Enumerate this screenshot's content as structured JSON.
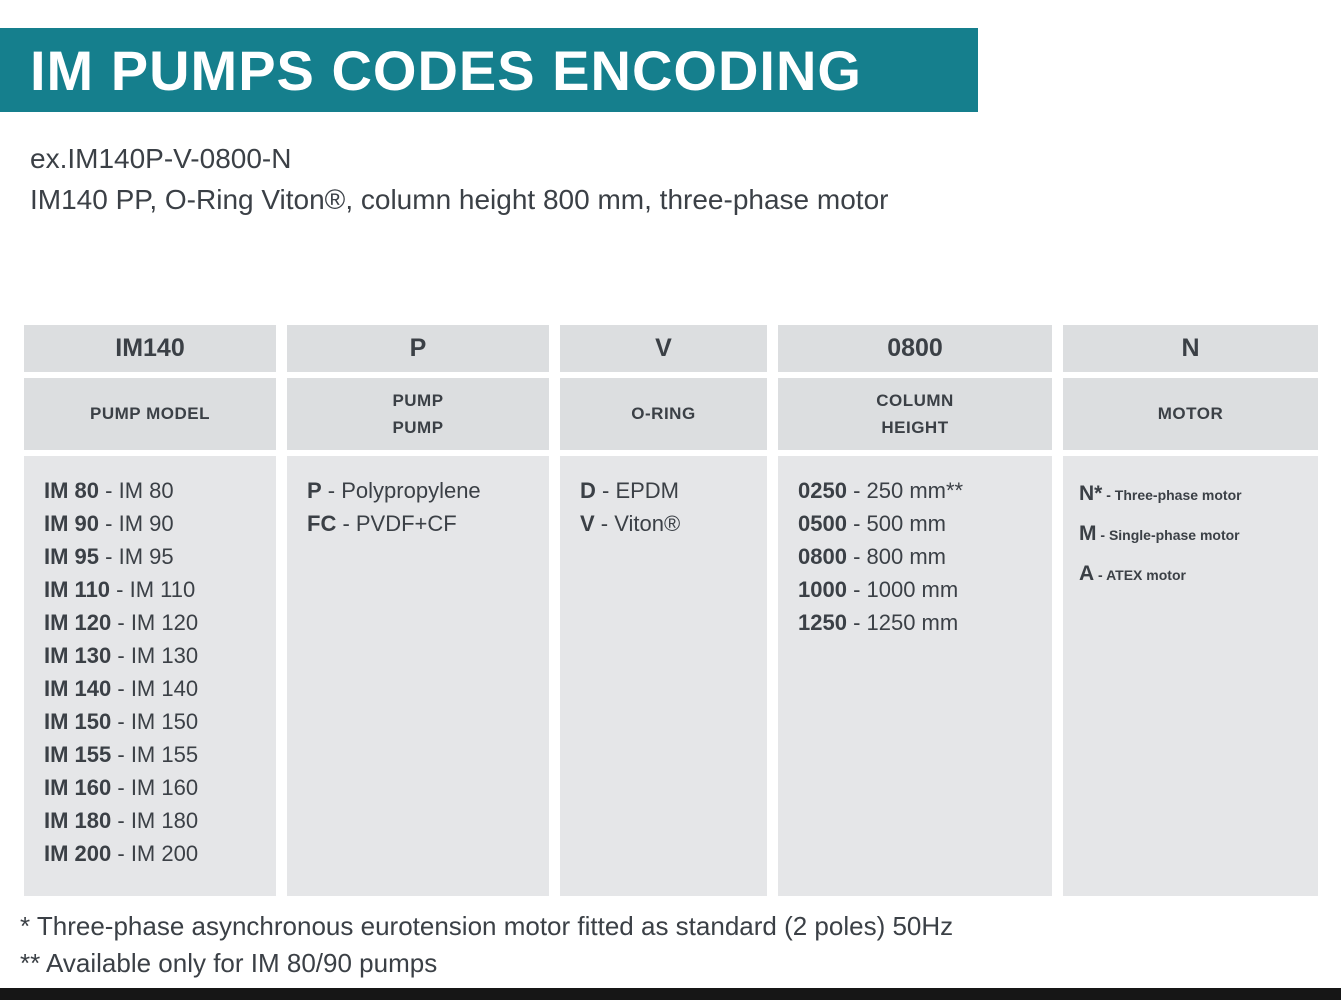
{
  "page": {
    "title": "IM PUMPS CODES ENCODING",
    "example_code": "ex.IM140P-V-0800-N",
    "example_description": "IM140 PP, O-Ring Viton®, column height 800 mm, three-phase motor",
    "footnotes": [
      "* Three-phase asynchronous eurotension motor fitted as standard (2 poles) 50Hz",
      "** Available only for IM 80/90 pumps"
    ]
  },
  "colors": {
    "banner": "#157f8d",
    "header_cell": "#dcdee0",
    "body_cell": "#e5e6e8",
    "text": "#3b4046"
  },
  "table": {
    "columns": [
      {
        "code": "IM140",
        "label": "PUMP MODEL",
        "entries": [
          {
            "code": "IM 80",
            "desc": "IM 80"
          },
          {
            "code": "IM 90",
            "desc": "IM 90"
          },
          {
            "code": "IM 95",
            "desc": "IM 95"
          },
          {
            "code": "IM 110",
            "desc": "IM 110"
          },
          {
            "code": "IM 120",
            "desc": "IM 120"
          },
          {
            "code": "IM 130",
            "desc": "IM 130"
          },
          {
            "code": "IM 140",
            "desc": "IM 140"
          },
          {
            "code": "IM 150",
            "desc": "IM 150"
          },
          {
            "code": "IM 155",
            "desc": "IM 155"
          },
          {
            "code": "IM 160",
            "desc": "IM 160"
          },
          {
            "code": "IM 180",
            "desc": "IM 180"
          },
          {
            "code": "IM 200",
            "desc": "IM 200"
          }
        ]
      },
      {
        "code": "P",
        "label": "PUMP\nPUMP",
        "entries": [
          {
            "code": "P",
            "desc": "Polypropylene"
          },
          {
            "code": "FC",
            "desc": "PVDF+CF"
          }
        ]
      },
      {
        "code": "V",
        "label": "O-RING",
        "entries": [
          {
            "code": "D",
            "desc": "EPDM"
          },
          {
            "code": "V",
            "desc": "Viton®"
          }
        ]
      },
      {
        "code": "0800",
        "label": "COLUMN\nHEIGHT",
        "entries": [
          {
            "code": "0250",
            "desc": "250 mm**"
          },
          {
            "code": "0500",
            "desc": "500 mm"
          },
          {
            "code": "0800",
            "desc": "800 mm"
          },
          {
            "code": "1000",
            "desc": "1000 mm"
          },
          {
            "code": "1250",
            "desc": "1250 mm"
          }
        ]
      },
      {
        "code": "N",
        "label": "MOTOR",
        "entries": [
          {
            "code": "N*",
            "desc": "Three-phase motor"
          },
          {
            "code": "M",
            "desc": "Single-phase motor"
          },
          {
            "code": "A",
            "desc": "ATEX motor"
          }
        ]
      }
    ]
  }
}
